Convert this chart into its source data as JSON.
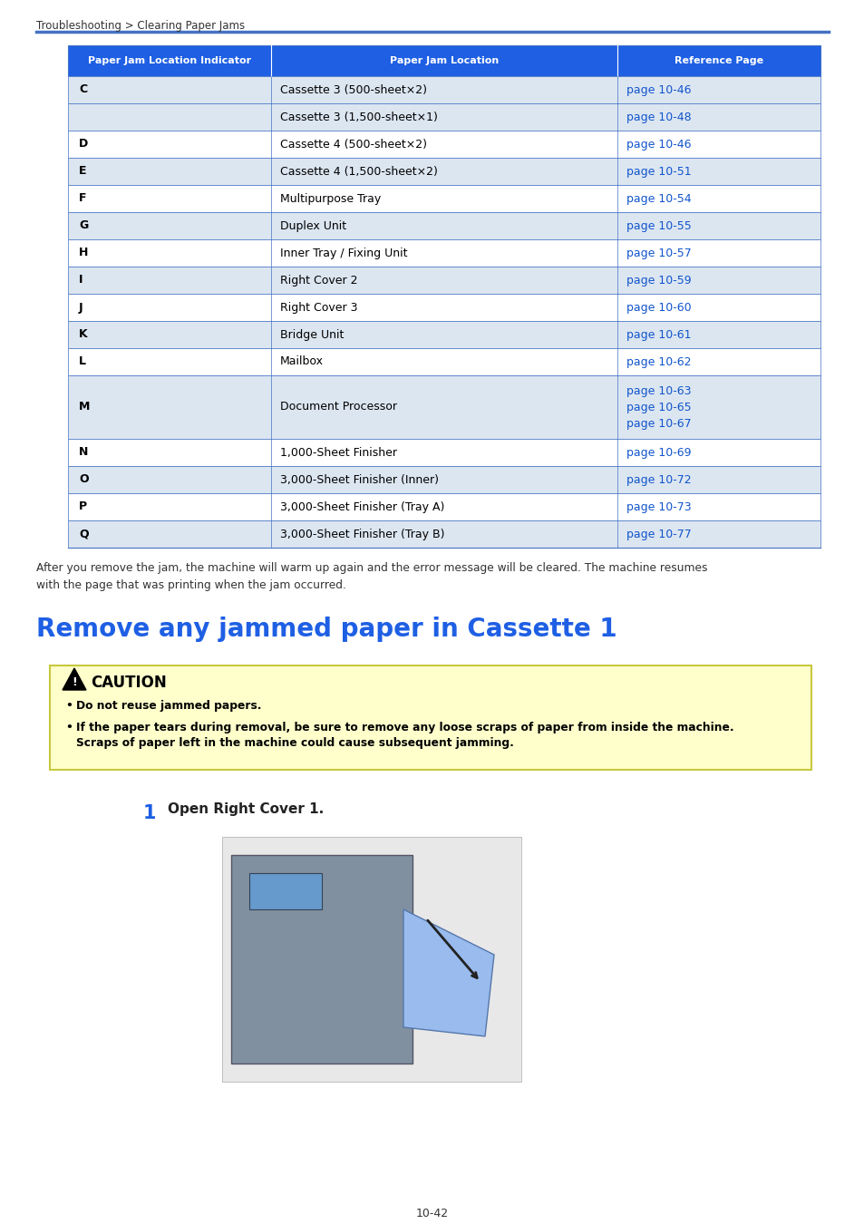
{
  "page_bg": "#ffffff",
  "header_text": "Troubleshooting > Clearing Paper Jams",
  "header_color": "#333333",
  "header_line_color": "#4472c4",
  "table_header_bg": "#1e5fe4",
  "table_header_text_color": "#ffffff",
  "table_row_bg_odd": "#dce6f1",
  "table_row_bg_even": "#ffffff",
  "table_border_color": "#4472c4",
  "table_text_color": "#000000",
  "table_link_color": "#1155cc",
  "table_headers": [
    "Paper Jam Location Indicator",
    "Paper Jam Location",
    "Reference Page"
  ],
  "table_rows": [
    [
      "C",
      "Cassette 3 (500-sheet×2)",
      "page 10-46"
    ],
    [
      "",
      "Cassette 3 (1,500-sheet×1)",
      "page 10-48"
    ],
    [
      "D",
      "Cassette 4 (500-sheet×2)",
      "page 10-46"
    ],
    [
      "E",
      "Cassette 4 (1,500-sheet×2)",
      "page 10-51"
    ],
    [
      "F",
      "Multipurpose Tray",
      "page 10-54"
    ],
    [
      "G",
      "Duplex Unit",
      "page 10-55"
    ],
    [
      "H",
      "Inner Tray / Fixing Unit",
      "page 10-57"
    ],
    [
      "I",
      "Right Cover 2",
      "page 10-59"
    ],
    [
      "J",
      "Right Cover 3",
      "page 10-60"
    ],
    [
      "K",
      "Bridge Unit",
      "page 10-61"
    ],
    [
      "L",
      "Mailbox",
      "page 10-62"
    ],
    [
      "M",
      "Document Processor",
      "page 10-63|page 10-65|page 10-67"
    ],
    [
      "N",
      "1,000-Sheet Finisher",
      "page 10-69"
    ],
    [
      "O",
      "3,000-Sheet Finisher (Inner)",
      "page 10-72"
    ],
    [
      "P",
      "3,000-Sheet Finisher (Tray A)",
      "page 10-73"
    ],
    [
      "Q",
      "3,000-Sheet Finisher (Tray B)",
      "page 10-77"
    ]
  ],
  "after_text": "After you remove the jam, the machine will warm up again and the error message will be cleared. The machine resumes\nwith the page that was printing when the jam occurred.",
  "section_title": "Remove any jammed paper in Cassette 1",
  "section_title_color": "#1e5fe4",
  "caution_bg": "#ffffcc",
  "caution_border": "#c8c840",
  "caution_title": "CAUTION",
  "caution_bullet1": "Do not reuse jammed papers.",
  "caution_bullet2a": "If the paper tears during removal, be sure to remove any loose scraps of paper from inside the machine.",
  "caution_bullet2b": "Scraps of paper left in the machine could cause subsequent jamming.",
  "step_number": "1",
  "step_text": "Open Right Cover 1.",
  "page_number": "10-42"
}
